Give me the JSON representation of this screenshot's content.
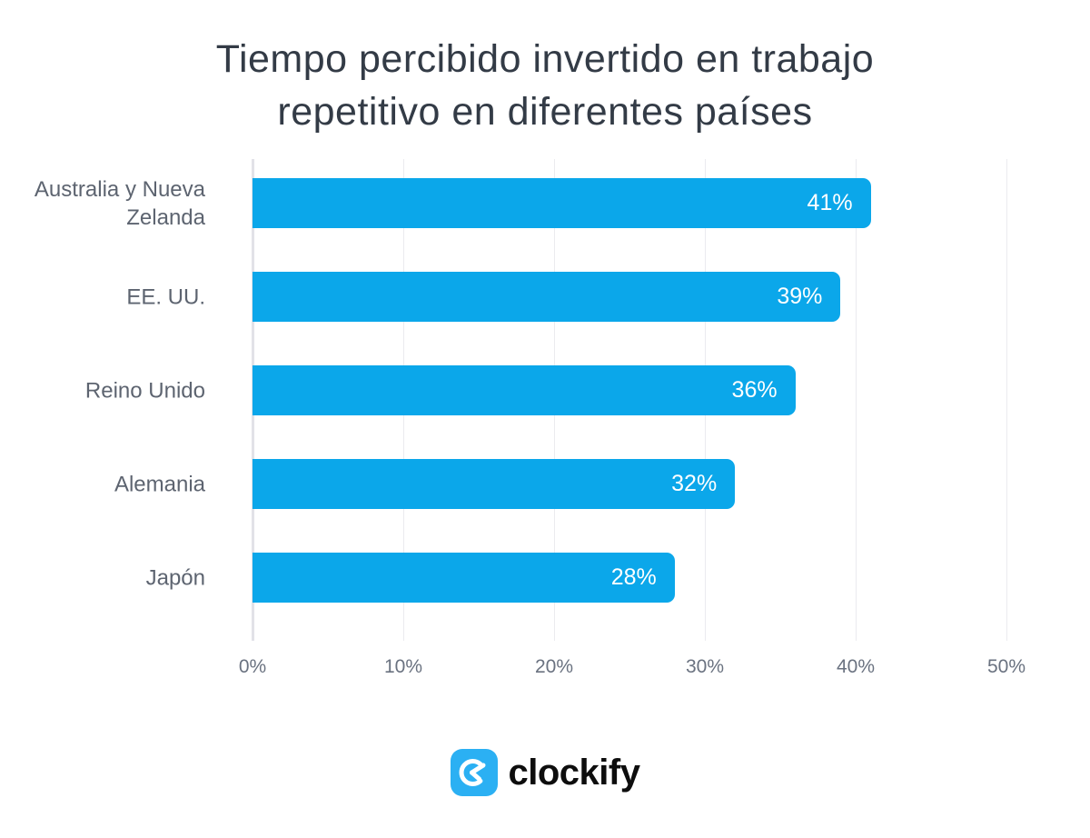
{
  "title": {
    "line1": "Tiempo percibido invertido en trabajo",
    "line2": "repetitivo en diferentes países"
  },
  "chart_data": {
    "type": "bar",
    "orientation": "horizontal",
    "title": "Tiempo percibido invertido en trabajo repetitivo en diferentes países",
    "categories": [
      "Australia y Nueva Zelanda",
      "EE. UU.",
      "Reino Unido",
      "Alemania",
      "Japón"
    ],
    "values": [
      41,
      39,
      36,
      32,
      28
    ],
    "value_labels": [
      "41%",
      "39%",
      "36%",
      "32%",
      "28%"
    ],
    "xlabel": "",
    "ylabel": "",
    "xlim": [
      0,
      50
    ],
    "x_tick_values": [
      0,
      10,
      20,
      30,
      40,
      50
    ],
    "x_tick_labels": [
      "0%",
      "10%",
      "20%",
      "30%",
      "40%",
      "50%"
    ],
    "grid": "vertical-gridlines-on",
    "legend": "none",
    "bar_color": "#0ba7ea",
    "value_label_color": "#ffffff",
    "gridline_color": "#ebebef",
    "axis_line_color": "#e2e2e8",
    "category_label_color": "#5d6470",
    "tick_label_color": "#6a7280",
    "title_color": "#333b46"
  },
  "footer": {
    "brand_wordmark": "clockify",
    "logo_icon": "clockify-clock-icon",
    "logo_color": "#2bb0f3",
    "wordmark_color": "#0d0d0d"
  }
}
